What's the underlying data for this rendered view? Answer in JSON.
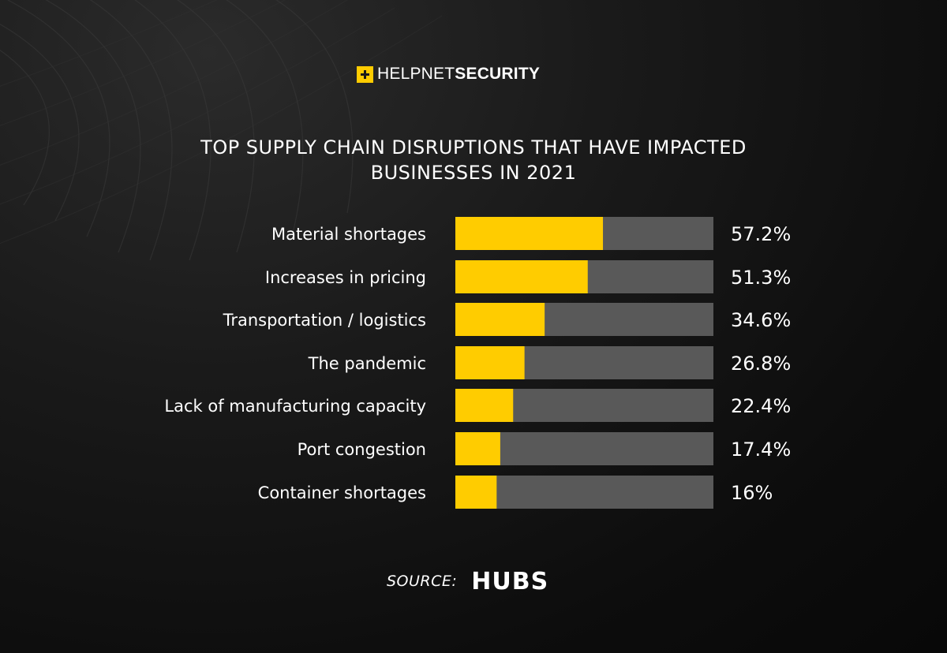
{
  "brand": {
    "prefix": "HELP",
    "middle": "NET",
    "suffix": "SECURITY",
    "accent": "#ffcc00"
  },
  "colors": {
    "bar_fill": "#ffcc00",
    "bar_track": "#595959",
    "text": "#ffffff"
  },
  "chart_data": {
    "type": "bar",
    "orientation": "horizontal",
    "title": "TOP SUPPLY CHAIN DISRUPTIONS THAT HAVE IMPACTED BUSINESSES IN 2021",
    "title_lines": [
      "TOP SUPPLY CHAIN DISRUPTIONS THAT HAVE IMPACTED",
      "BUSINESSES IN 2021"
    ],
    "categories": [
      "Material shortages",
      "Increases in pricing",
      "Transportation / logistics",
      "The pandemic",
      "Lack of manufacturing capacity",
      "Port congestion",
      "Container shortages"
    ],
    "values": [
      57.2,
      51.3,
      34.6,
      26.8,
      22.4,
      17.4,
      16
    ],
    "value_labels": [
      "57.2%",
      "51.3%",
      "34.6%",
      "26.8%",
      "22.4%",
      "17.4%",
      "16%"
    ],
    "xlim": [
      0,
      100
    ],
    "unit": "%",
    "grid": false,
    "legend": "none"
  },
  "source": {
    "label": "SOURCE:",
    "brand": "HUBS"
  }
}
